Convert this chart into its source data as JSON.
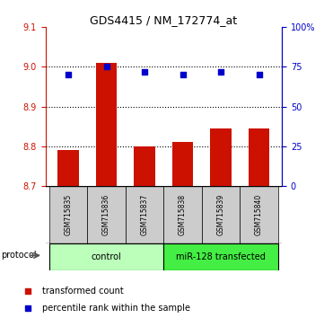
{
  "title": "GDS4415 / NM_172774_at",
  "samples": [
    "GSM715835",
    "GSM715836",
    "GSM715837",
    "GSM715838",
    "GSM715839",
    "GSM715840"
  ],
  "red_values": [
    8.79,
    9.01,
    8.8,
    8.81,
    8.845,
    8.845
  ],
  "blue_percentiles": [
    70.0,
    75.0,
    72.0,
    70.0,
    72.0,
    70.0
  ],
  "ylim_left": [
    8.7,
    9.1
  ],
  "ylim_right": [
    0,
    100
  ],
  "bar_color": "#cc1100",
  "dot_color": "#0000cc",
  "left_tick_color": "#cc1100",
  "right_tick_color": "#0000cc",
  "group_ranges": [
    {
      "start": 0,
      "end": 2,
      "label": "control",
      "color": "#bbffbb"
    },
    {
      "start": 3,
      "end": 5,
      "label": "miR-128 transfected",
      "color": "#44ee44"
    }
  ],
  "legend_red": "transformed count",
  "legend_blue": "percentile rank within the sample",
  "protocol_label": "protocol",
  "sample_bg": "#cccccc"
}
